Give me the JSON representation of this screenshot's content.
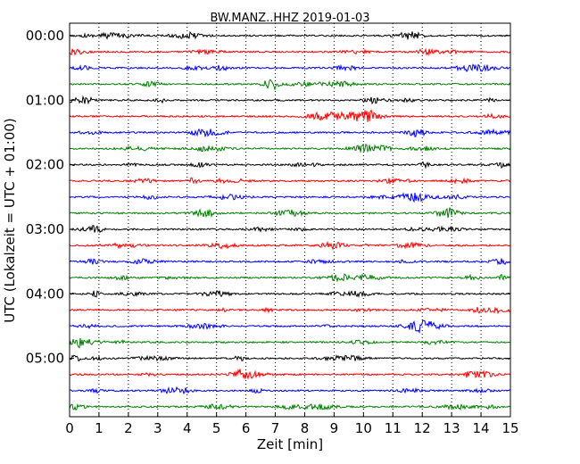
{
  "chart_data": {
    "type": "line",
    "title": "BW.MANZ..HHZ 2019-01-03",
    "xlabel": "Zeit  [min]",
    "ylabel": "UTC (Lokalzeit = UTC + 01:00)",
    "xlim": [
      0,
      15
    ],
    "x_ticks": [
      "0",
      "1",
      "2",
      "3",
      "4",
      "5",
      "6",
      "7",
      "8",
      "9",
      "10",
      "11",
      "12",
      "13",
      "14",
      "15"
    ],
    "y_ticks": [
      "00:00",
      "01:00",
      "02:00",
      "03:00",
      "04:00",
      "05:00"
    ],
    "y_tick_rows": [
      0,
      4,
      8,
      12,
      16,
      20
    ],
    "vertical_grid": "dotted",
    "trace_colors": [
      "#000000",
      "#ff0000",
      "#0000ff",
      "#008000"
    ],
    "traces": [
      {
        "start": "00:00"
      },
      {
        "start": "00:15"
      },
      {
        "start": "00:30"
      },
      {
        "start": "00:45"
      },
      {
        "start": "01:00"
      },
      {
        "start": "01:15"
      },
      {
        "start": "01:30"
      },
      {
        "start": "01:45"
      },
      {
        "start": "02:00"
      },
      {
        "start": "02:15"
      },
      {
        "start": "02:30"
      },
      {
        "start": "02:45"
      },
      {
        "start": "03:00"
      },
      {
        "start": "03:15"
      },
      {
        "start": "03:30"
      },
      {
        "start": "03:45"
      },
      {
        "start": "04:00"
      },
      {
        "start": "04:15"
      },
      {
        "start": "04:30"
      },
      {
        "start": "04:45"
      },
      {
        "start": "05:00"
      },
      {
        "start": "05:15"
      },
      {
        "start": "05:30"
      },
      {
        "start": "05:45"
      }
    ]
  }
}
